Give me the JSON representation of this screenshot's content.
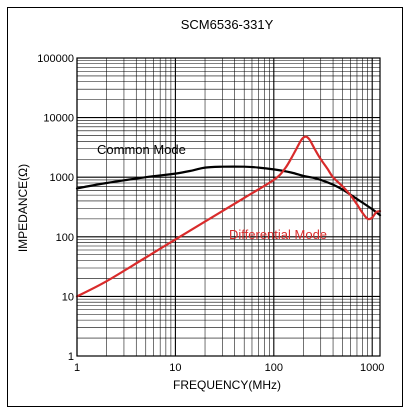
{
  "chart_data": {
    "type": "line",
    "title": "SCM6536-331Y",
    "xlabel": "FREQUENCY(MHz)",
    "ylabel": "IMPEDANCE(Ω)",
    "xscale": "log",
    "yscale": "log",
    "xlim": [
      1,
      1200
    ],
    "ylim": [
      1,
      100000
    ],
    "grid": true,
    "x_ticks": [
      {
        "value": 1,
        "label": "1"
      },
      {
        "value": 10,
        "label": "10"
      },
      {
        "value": 100,
        "label": "100"
      },
      {
        "value": 1000,
        "label": "1000"
      }
    ],
    "y_ticks": [
      {
        "value": 1,
        "label": "1"
      },
      {
        "value": 10,
        "label": "10"
      },
      {
        "value": 100,
        "label": "100"
      },
      {
        "value": 1000,
        "label": "1000"
      },
      {
        "value": 10000,
        "label": "10000"
      },
      {
        "value": 100000,
        "label": "100000"
      }
    ],
    "series": [
      {
        "name": "Common Mode",
        "color": "#000000",
        "x": [
          1,
          2,
          5,
          10,
          15,
          20,
          30,
          50,
          70,
          100,
          150,
          200,
          250,
          300,
          400,
          500,
          700,
          1000,
          1200
        ],
        "y": [
          650,
          800,
          1000,
          1150,
          1300,
          1450,
          1500,
          1500,
          1450,
          1350,
          1200,
          1050,
          980,
          900,
          750,
          620,
          430,
          290,
          230
        ]
      },
      {
        "name": "Differential Mode",
        "color": "#d92b2b",
        "x": [
          1,
          2,
          5,
          10,
          20,
          50,
          100,
          130,
          160,
          190,
          210,
          230,
          260,
          300,
          350,
          400,
          500,
          600,
          700,
          800,
          900,
          1000,
          1100,
          1200
        ],
        "y": [
          10,
          18,
          45,
          90,
          180,
          450,
          900,
          1400,
          2500,
          4200,
          4800,
          4300,
          3000,
          2000,
          1400,
          1000,
          700,
          500,
          350,
          250,
          200,
          210,
          260,
          270
        ]
      }
    ],
    "annotations": [
      {
        "text": "Common Mode",
        "color": "#000000"
      },
      {
        "text": "Differential Mode",
        "color": "#d92b2b"
      }
    ]
  }
}
